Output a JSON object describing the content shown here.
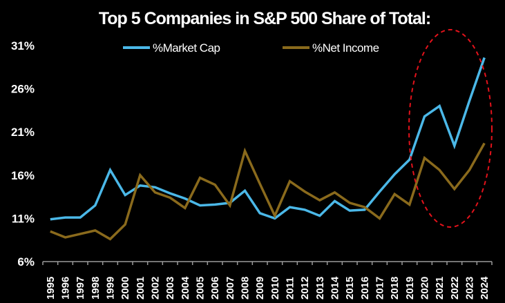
{
  "chart_data": {
    "type": "line",
    "title": "Top 5 Companies in S&P 500 Share of Total:",
    "xlabel": "",
    "ylabel": "",
    "categories": [
      "1995",
      "1996",
      "1997",
      "1998",
      "1999",
      "2000",
      "2001",
      "2002",
      "2003",
      "2004",
      "2005",
      "2006",
      "2007",
      "2008",
      "2009",
      "2010",
      "2011",
      "2012",
      "2013",
      "2014",
      "2015",
      "2016",
      "2017",
      "2018",
      "2019",
      "2020",
      "2021",
      "2022",
      "2023",
      "2024"
    ],
    "ylim": [
      6,
      31
    ],
    "yticks": [
      6,
      11,
      16,
      21,
      26,
      31
    ],
    "ytick_labels": [
      "6%",
      "11%",
      "16%",
      "21%",
      "26%",
      "31%"
    ],
    "grid": false,
    "legend_placement": "top",
    "series": [
      {
        "name": "%Market Cap",
        "color": "#4bb8e8",
        "values": [
          10.9,
          11.1,
          11.1,
          12.5,
          16.6,
          13.7,
          14.8,
          14.6,
          13.9,
          13.3,
          12.5,
          12.6,
          12.8,
          14.2,
          11.6,
          11.0,
          12.3,
          12.0,
          11.3,
          13.0,
          11.9,
          12.0,
          14.1,
          16.1,
          17.8,
          22.8,
          24.0,
          19.4,
          24.6,
          29.6
        ]
      },
      {
        "name": "%Net Income",
        "color": "#8a6a1c",
        "values": [
          9.5,
          8.8,
          9.2,
          9.6,
          8.6,
          10.3,
          16.0,
          14.0,
          13.4,
          12.2,
          15.7,
          14.9,
          12.5,
          18.8,
          15.0,
          11.3,
          15.3,
          14.1,
          13.1,
          14.0,
          12.8,
          12.3,
          11.0,
          13.8,
          12.6,
          18.0,
          16.6,
          14.4,
          16.6,
          19.7
        ]
      }
    ],
    "annotation": {
      "shape": "dashed-ellipse",
      "color": "#e3121b",
      "highlights": [
        "2020",
        "2021",
        "2022",
        "2023",
        "2024"
      ]
    }
  }
}
